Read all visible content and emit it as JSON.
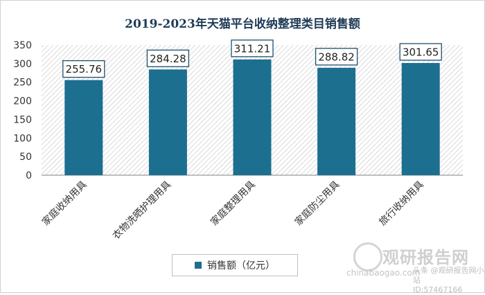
{
  "chart_data": {
    "type": "bar",
    "title": "2019-2023年天猫平台收纳整理类目销售额",
    "categories": [
      "家庭收纳用具",
      "衣物洗晒护理用具",
      "家庭整理用具",
      "家庭防尘用具",
      "旅行收纳用具"
    ],
    "series": [
      {
        "name": "销售额（亿元）",
        "values": [
          255.76,
          284.28,
          311.21,
          288.82,
          301.65
        ]
      }
    ],
    "data_labels": [
      "255.76",
      "284.28",
      "311.21",
      "288.82",
      "301.65"
    ],
    "yticks": [
      "0",
      "50",
      "100",
      "150",
      "200",
      "250",
      "300",
      "350"
    ],
    "ylim": [
      0,
      350
    ],
    "grid": false,
    "legend_position": "bottom",
    "bar_color": "#1c6f8f",
    "xlabel": "",
    "ylabel": ""
  },
  "watermark": {
    "brand": "观研报告网",
    "site": "chinabaogao.com",
    "account": "头条 @观研报告网小站",
    "id": "ID:57467166"
  }
}
